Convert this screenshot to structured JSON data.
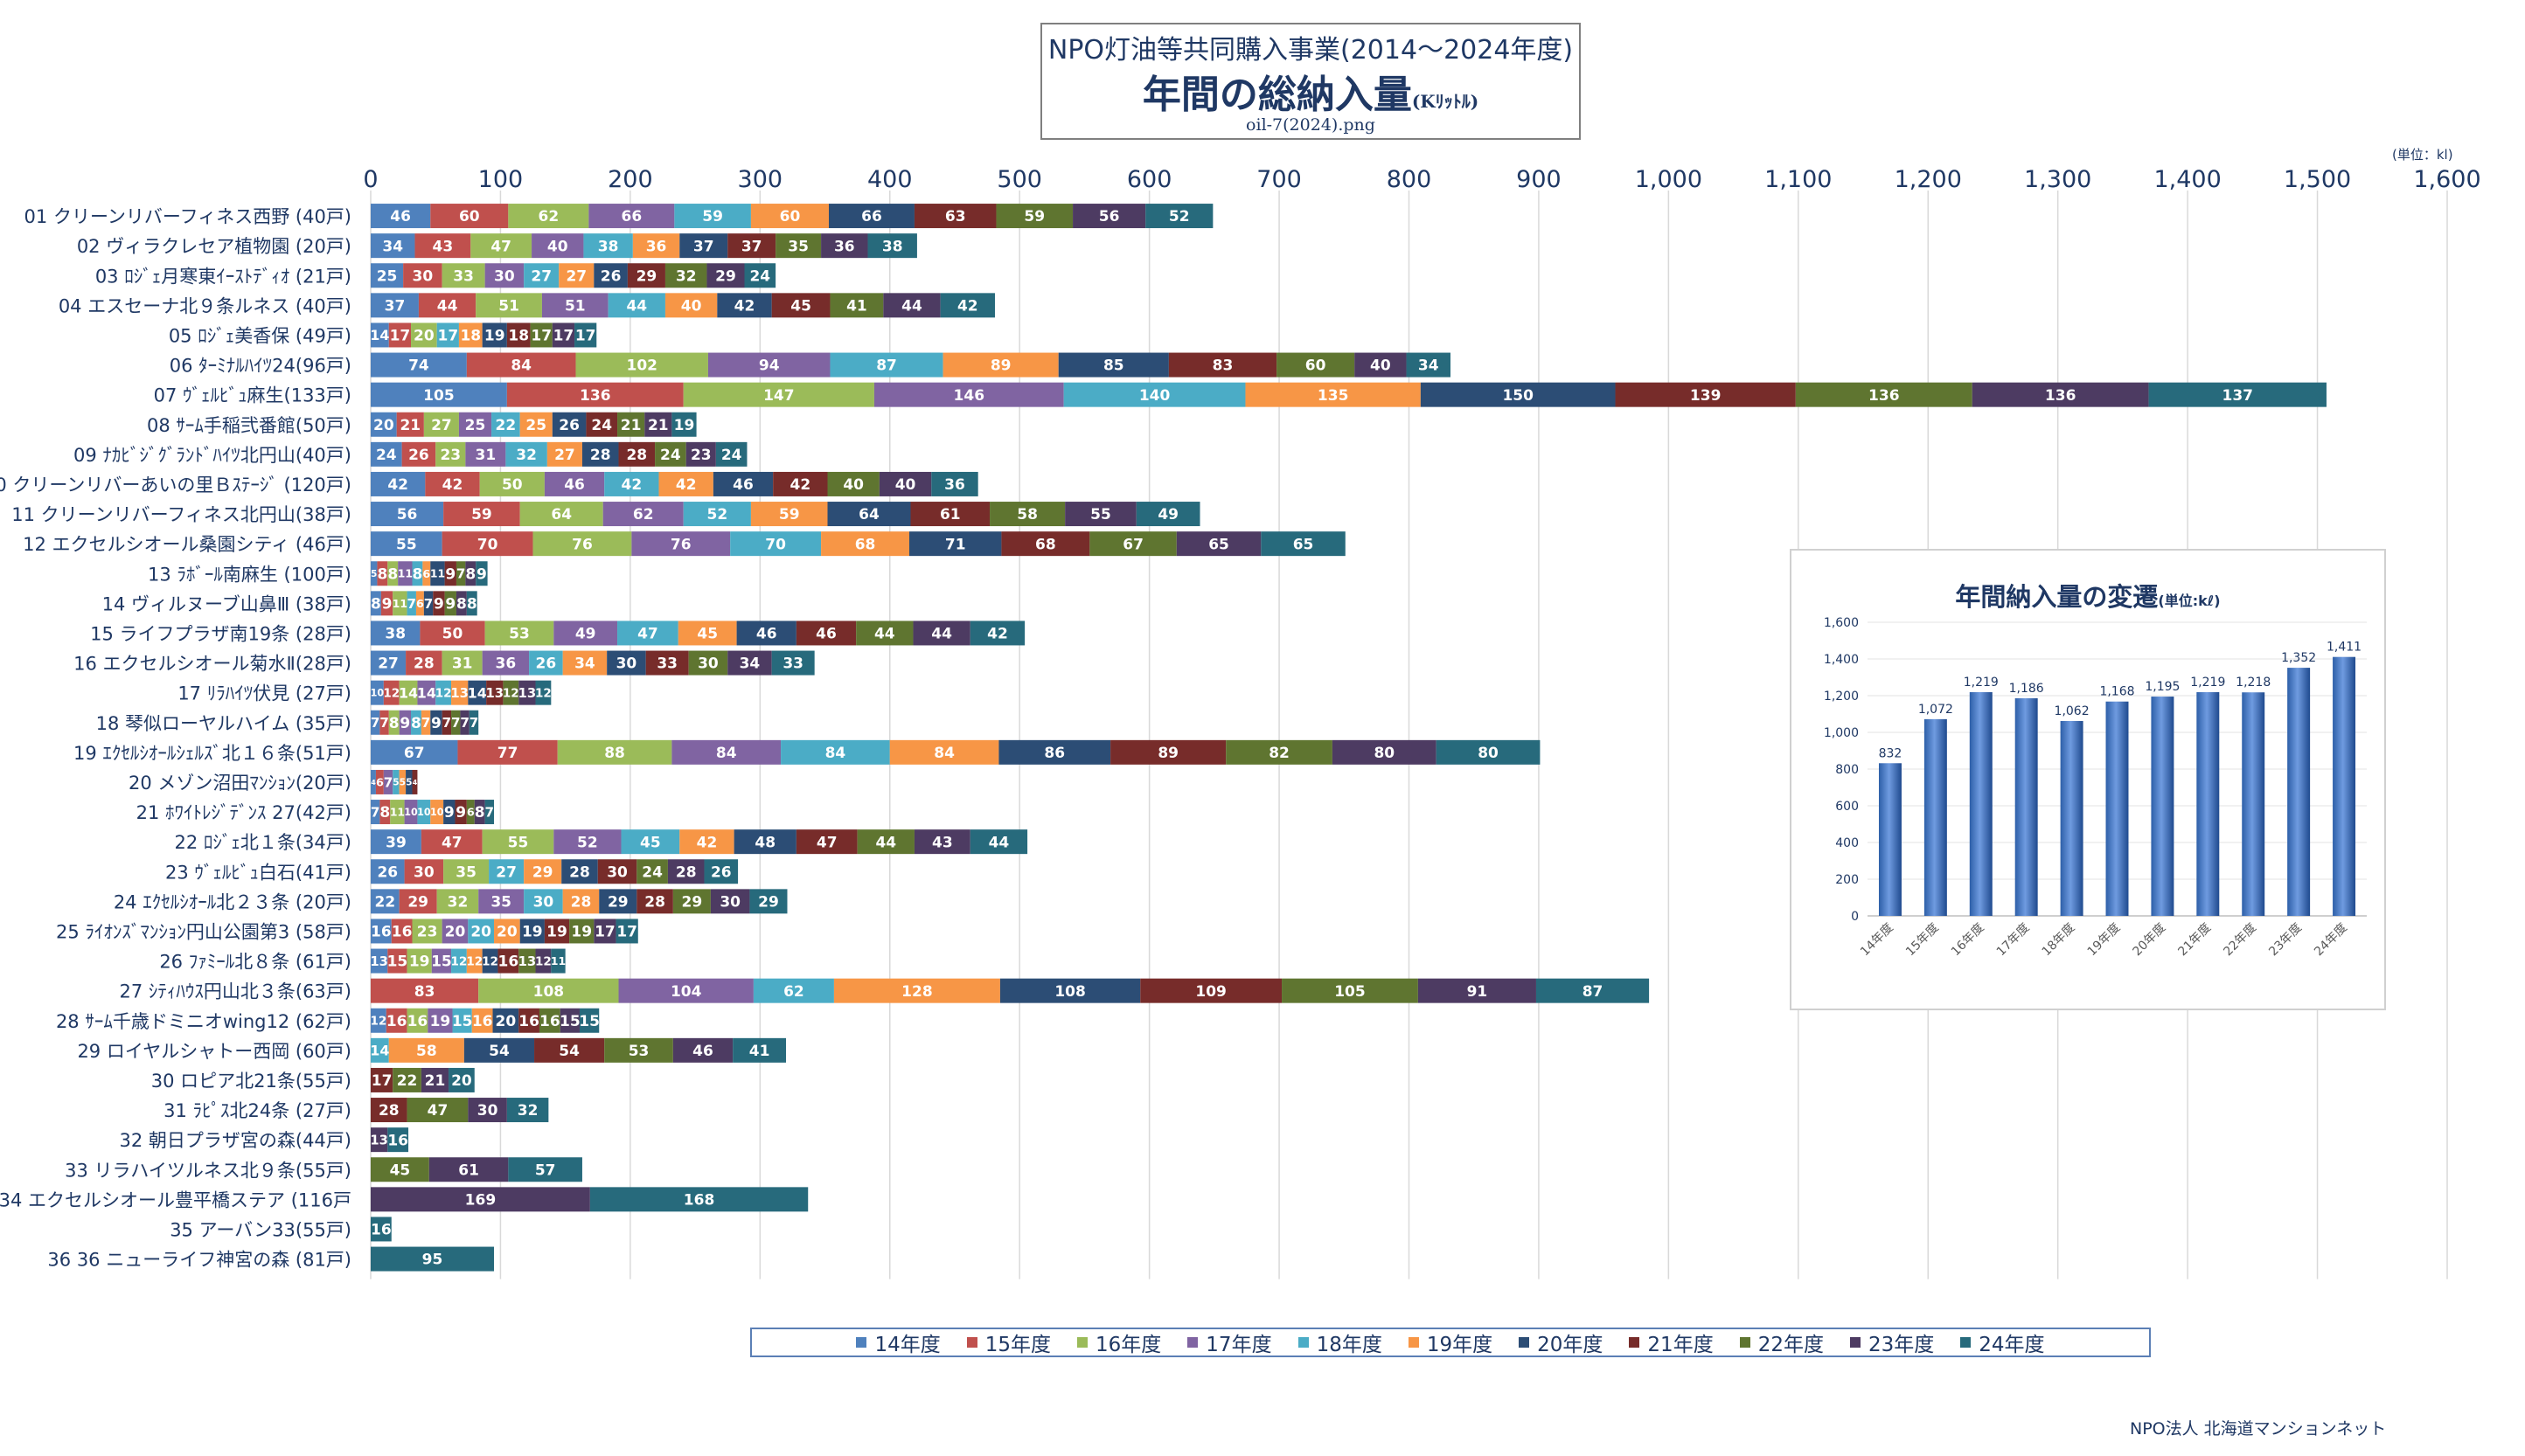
{
  "header": {
    "line1": "NPO灯油等共同購入事業(2014～2024年度)",
    "line2": "年間の総納入量",
    "unit": "(Kﾘｯﾄﾙ)",
    "line3": "oil-7(2024).png"
  },
  "unit_note": "(単位：kl)",
  "footer": "NPO法人 北海道マンションネット",
  "inset_title": "年間納入量の変遷",
  "inset_title_unit": "(単位:kℓ)",
  "colors": [
    "#4f81bd",
    "#c0504d",
    "#9bbb59",
    "#8064a2",
    "#4bacc6",
    "#f79646",
    "#2c4d75",
    "#772c2a",
    "#5f7530",
    "#4d3b62",
    "#276a7c"
  ],
  "legend": [
    "14年度",
    "15年度",
    "16年度",
    "17年度",
    "18年度",
    "19年度",
    "20年度",
    "21年度",
    "22年度",
    "23年度",
    "24年度"
  ],
  "chart_data": [
    {
      "type": "bar",
      "orientation": "horizontal",
      "stacked": true,
      "xlim": [
        0,
        1600
      ],
      "xticks": [
        0,
        100,
        200,
        300,
        400,
        500,
        600,
        700,
        800,
        900,
        1000,
        1100,
        1200,
        1300,
        1400,
        1500,
        1600
      ],
      "xtick_labels": [
        "0",
        "100",
        "200",
        "300",
        "400",
        "500",
        "600",
        "700",
        "800",
        "900",
        "1,000",
        "1,100",
        "1,200",
        "1,300",
        "1,400",
        "1,500",
        "1,600"
      ],
      "grid": true,
      "legend_position": "bottom",
      "series_names": [
        "14年度",
        "15年度",
        "16年度",
        "17年度",
        "18年度",
        "19年度",
        "20年度",
        "21年度",
        "22年度",
        "23年度",
        "24年度"
      ],
      "categories": [
        {
          "label": "01  クリーンリバーフィネス西野 (40戸)",
          "values": [
            46,
            60,
            62,
            66,
            59,
            60,
            66,
            63,
            59,
            56,
            52
          ]
        },
        {
          "label": "02  ヴィラクレセア植物園 (20戸)",
          "values": [
            34,
            43,
            47,
            40,
            38,
            36,
            37,
            37,
            35,
            36,
            38
          ]
        },
        {
          "label": "03  ﾛｼﾞｪ月寒東ｲｰｽﾄﾃﾞｨｵ (21戸)",
          "values": [
            25,
            30,
            33,
            30,
            27,
            27,
            26,
            29,
            32,
            29,
            24
          ]
        },
        {
          "label": "04  エスセーナ北９条ルネス (40戸)",
          "values": [
            37,
            44,
            51,
            51,
            44,
            40,
            42,
            45,
            41,
            44,
            42
          ]
        },
        {
          "label": "05  ﾛｼﾞｪ美香保 (49戸)",
          "values": [
            14,
            17,
            20,
            null,
            17,
            18,
            19,
            18,
            17,
            17,
            17
          ]
        },
        {
          "label": "06  ﾀｰﾐﾅﾙﾊｲﾂ24(96戸)",
          "values": [
            74,
            84,
            102,
            94,
            87,
            89,
            85,
            83,
            60,
            40,
            34
          ]
        },
        {
          "label": "07  ｳﾞｪﾙﾋﾞｭ麻生(133戸)",
          "values": [
            105,
            136,
            147,
            146,
            140,
            135,
            150,
            139,
            136,
            136,
            137
          ]
        },
        {
          "label": "08  ｻｰﾑ手稲弐番館(50戸)",
          "values": [
            20,
            21,
            27,
            25,
            22,
            25,
            26,
            24,
            21,
            21,
            19
          ]
        },
        {
          "label": "09  ﾅｶﾋﾞｼﾞｸﾞﾗﾝﾄﾞﾊｲﾂ北円山(40戸)",
          "values": [
            24,
            26,
            23,
            31,
            32,
            27,
            28,
            28,
            24,
            23,
            24
          ]
        },
        {
          "label": "10  クリーンリバーあいの里Ｂｽﾃｰｼﾞ (120戸)",
          "values": [
            42,
            42,
            50,
            46,
            42,
            42,
            46,
            42,
            40,
            40,
            36
          ]
        },
        {
          "label": "11  クリーンリバーフィネス北円山(38戸)",
          "values": [
            56,
            59,
            64,
            62,
            52,
            59,
            64,
            61,
            58,
            55,
            49
          ]
        },
        {
          "label": "12  エクセルシオール桑園シティ (46戸)",
          "values": [
            55,
            70,
            76,
            76,
            70,
            68,
            71,
            68,
            67,
            65,
            65
          ]
        },
        {
          "label": "13  ﾗﾎﾞｰﾙ南麻生 (100戸)",
          "values": [
            5,
            8,
            8,
            11,
            8,
            6,
            11,
            9,
            7,
            8,
            9
          ]
        },
        {
          "label": "14  ヴィルヌーブ山鼻Ⅲ (38戸)",
          "values": [
            8,
            9,
            11,
            null,
            7,
            6,
            7,
            9,
            9,
            8,
            8
          ]
        },
        {
          "label": "15  ライフプラザ南19条 (28戸)",
          "values": [
            38,
            50,
            53,
            49,
            47,
            45,
            46,
            46,
            44,
            44,
            42
          ]
        },
        {
          "label": "16  エクセルシオール菊水Ⅱ(28戸)",
          "values": [
            27,
            28,
            31,
            36,
            26,
            34,
            30,
            33,
            30,
            34,
            33
          ]
        },
        {
          "label": "17  ﾘﾗﾊｲﾂ伏見 (27戸)",
          "values": [
            10,
            12,
            14,
            14,
            12,
            13,
            14,
            13,
            12,
            13,
            12
          ]
        },
        {
          "label": "18  琴似ローヤルハイム (35戸)",
          "values": [
            7,
            7,
            8,
            9,
            8,
            7,
            9,
            7,
            7,
            7,
            7
          ]
        },
        {
          "label": "19  ｴｸｾﾙｼｵｰﾙｼｪﾙｽﾞ北１６条(51戸)",
          "values": [
            67,
            77,
            88,
            84,
            84,
            84,
            86,
            89,
            82,
            80,
            80
          ]
        },
        {
          "label": "20  メゾン沼田ﾏﾝｼｮﾝ(20戸)",
          "values": [
            4,
            6,
            null,
            7,
            5,
            5,
            5,
            4,
            null,
            null,
            null
          ]
        },
        {
          "label": "21  ﾎﾜｲﾄﾚｼﾞﾃﾞﾝｽ 27(42戸)",
          "values": [
            7,
            8,
            11,
            10,
            10,
            10,
            9,
            9,
            6,
            8,
            7
          ]
        },
        {
          "label": "22  ﾛｼﾞｪ北１条(34戸)",
          "values": [
            39,
            47,
            55,
            52,
            45,
            42,
            48,
            47,
            44,
            43,
            44
          ]
        },
        {
          "label": "23  ｳﾞｪﾙﾋﾞｭ白石(41戸)",
          "values": [
            26,
            30,
            35,
            null,
            27,
            29,
            28,
            30,
            24,
            28,
            26
          ]
        },
        {
          "label": "24  ｴｸｾﾙｼｵｰﾙ北２３条 (20戸)",
          "values": [
            22,
            29,
            32,
            35,
            30,
            28,
            29,
            28,
            29,
            30,
            29
          ]
        },
        {
          "label": "25  ﾗｲｵﾝｽﾞﾏﾝｼｮﾝ円山公園第3 (58戸)",
          "values": [
            16,
            16,
            23,
            20,
            20,
            20,
            19,
            19,
            19,
            17,
            17
          ]
        },
        {
          "label": "26  ﾌｧﾐｰﾙ北８条 (61戸)",
          "values": [
            13,
            15,
            19,
            15,
            12,
            12,
            12,
            16,
            13,
            12,
            11
          ]
        },
        {
          "label": "27  ｼﾃｨﾊｳｽ円山北３条(63戸)",
          "values": [
            null,
            83,
            108,
            104,
            62,
            128,
            108,
            109,
            105,
            91,
            87
          ]
        },
        {
          "label": "28  ｻｰﾑ千歳ドミニオwing12 (62戸)",
          "values": [
            12,
            16,
            16,
            19,
            15,
            16,
            20,
            16,
            16,
            15,
            15
          ]
        },
        {
          "label": "29  ロイヤルシャトー西岡 (60戸)",
          "values": [
            null,
            null,
            null,
            null,
            14,
            58,
            54,
            54,
            53,
            46,
            41
          ]
        },
        {
          "label": "30  ロピア北21条(55戸)",
          "values": [
            null,
            null,
            null,
            null,
            null,
            null,
            null,
            17,
            22,
            21,
            20
          ]
        },
        {
          "label": "31  ﾗﾋﾟｽ北24条 (27戸)",
          "values": [
            null,
            null,
            null,
            null,
            null,
            null,
            null,
            28,
            47,
            30,
            32
          ]
        },
        {
          "label": "32  朝日プラザ宮の森(44戸)",
          "values": [
            null,
            null,
            null,
            null,
            null,
            null,
            null,
            null,
            null,
            13,
            16
          ]
        },
        {
          "label": "33  リラハイツルネス北９条(55戸)",
          "values": [
            null,
            null,
            null,
            null,
            null,
            null,
            null,
            null,
            45,
            61,
            57
          ]
        },
        {
          "label": "34  エクセルシオール豊平橋ステア (116戸",
          "values": [
            null,
            null,
            null,
            null,
            null,
            null,
            null,
            null,
            null,
            169,
            168
          ]
        },
        {
          "label": "35  アーバン33(55戸)",
          "values": [
            null,
            null,
            null,
            null,
            null,
            null,
            null,
            null,
            null,
            null,
            16
          ]
        },
        {
          "label": "36  36  ニューライフ神宮の森 (81戸)",
          "values": [
            null,
            null,
            null,
            null,
            null,
            null,
            null,
            null,
            null,
            null,
            95
          ]
        }
      ]
    },
    {
      "type": "bar",
      "title": "年間納入量の変遷",
      "ylabel": "(単位:kℓ)",
      "categories": [
        "14年度",
        "15年度",
        "16年度",
        "17年度",
        "18年度",
        "19年度",
        "20年度",
        "21年度",
        "22年度",
        "23年度",
        "24年度"
      ],
      "values": [
        832,
        1072,
        1219,
        1186,
        1062,
        1168,
        1195,
        1219,
        1218,
        1352,
        1411
      ],
      "value_labels": [
        "832",
        "1,072",
        "1,219",
        "1,186",
        "1,062",
        "1,168",
        "1,195",
        "1,219",
        "1,218",
        "1,352",
        "1,411"
      ],
      "ylim": [
        0,
        1600
      ],
      "yticks": [
        0,
        200,
        400,
        600,
        800,
        1000,
        1200,
        1400,
        1600
      ],
      "ytick_labels": [
        "0",
        "200",
        "400",
        "600",
        "800",
        "1,000",
        "1,200",
        "1,400",
        "1,600"
      ]
    }
  ]
}
